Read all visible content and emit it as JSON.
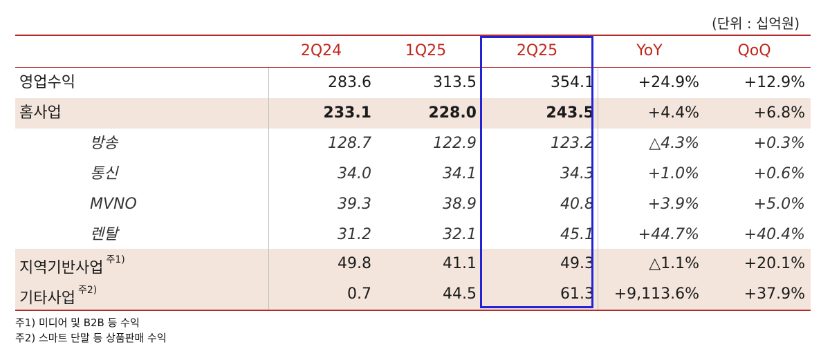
{
  "unit_note": "(단위 : 십억원)",
  "columns": [
    "2Q24",
    "1Q25",
    "2Q25",
    "YoY",
    "QoQ"
  ],
  "rows": [
    {
      "label": "영업수익",
      "sup": "",
      "values": [
        "283.6",
        "313.5",
        "354.1",
        "+24.9%",
        "+12.9%"
      ]
    },
    {
      "label": "홈사업",
      "sup": "",
      "values": [
        "233.1",
        "228.0",
        "243.5",
        "+4.4%",
        "+6.8%"
      ]
    },
    {
      "label": "방송",
      "sup": "",
      "values": [
        "128.7",
        "122.9",
        "123.2",
        "△4.3%",
        "+0.3%"
      ]
    },
    {
      "label": "통신",
      "sup": "",
      "values": [
        "34.0",
        "34.1",
        "34.3",
        "+1.0%",
        "+0.6%"
      ]
    },
    {
      "label": "MVNO",
      "sup": "",
      "values": [
        "39.3",
        "38.9",
        "40.8",
        "+3.9%",
        "+5.0%"
      ]
    },
    {
      "label": "렌탈",
      "sup": "",
      "values": [
        "31.2",
        "32.1",
        "45.1",
        "+44.7%",
        "+40.4%"
      ]
    },
    {
      "label": "지역기반사업",
      "sup": "주1)",
      "values": [
        "49.8",
        "41.1",
        "49.3",
        "△1.1%",
        "+20.1%"
      ]
    },
    {
      "label": "기타사업",
      "sup": "주2)",
      "values": [
        "0.7",
        "44.5",
        "61.3",
        "+9,113.6%",
        "+37.9%"
      ]
    }
  ],
  "footnotes": [
    "주1) 미디어 및 B2B 등 수익",
    "주2) 스마트 단말 등 상품판매 수익"
  ],
  "colors": {
    "accent_red": "#c0271c",
    "rule_red": "#b52a2a",
    "highlight_blue": "#2323d6",
    "shade": "#f3e5dc"
  }
}
